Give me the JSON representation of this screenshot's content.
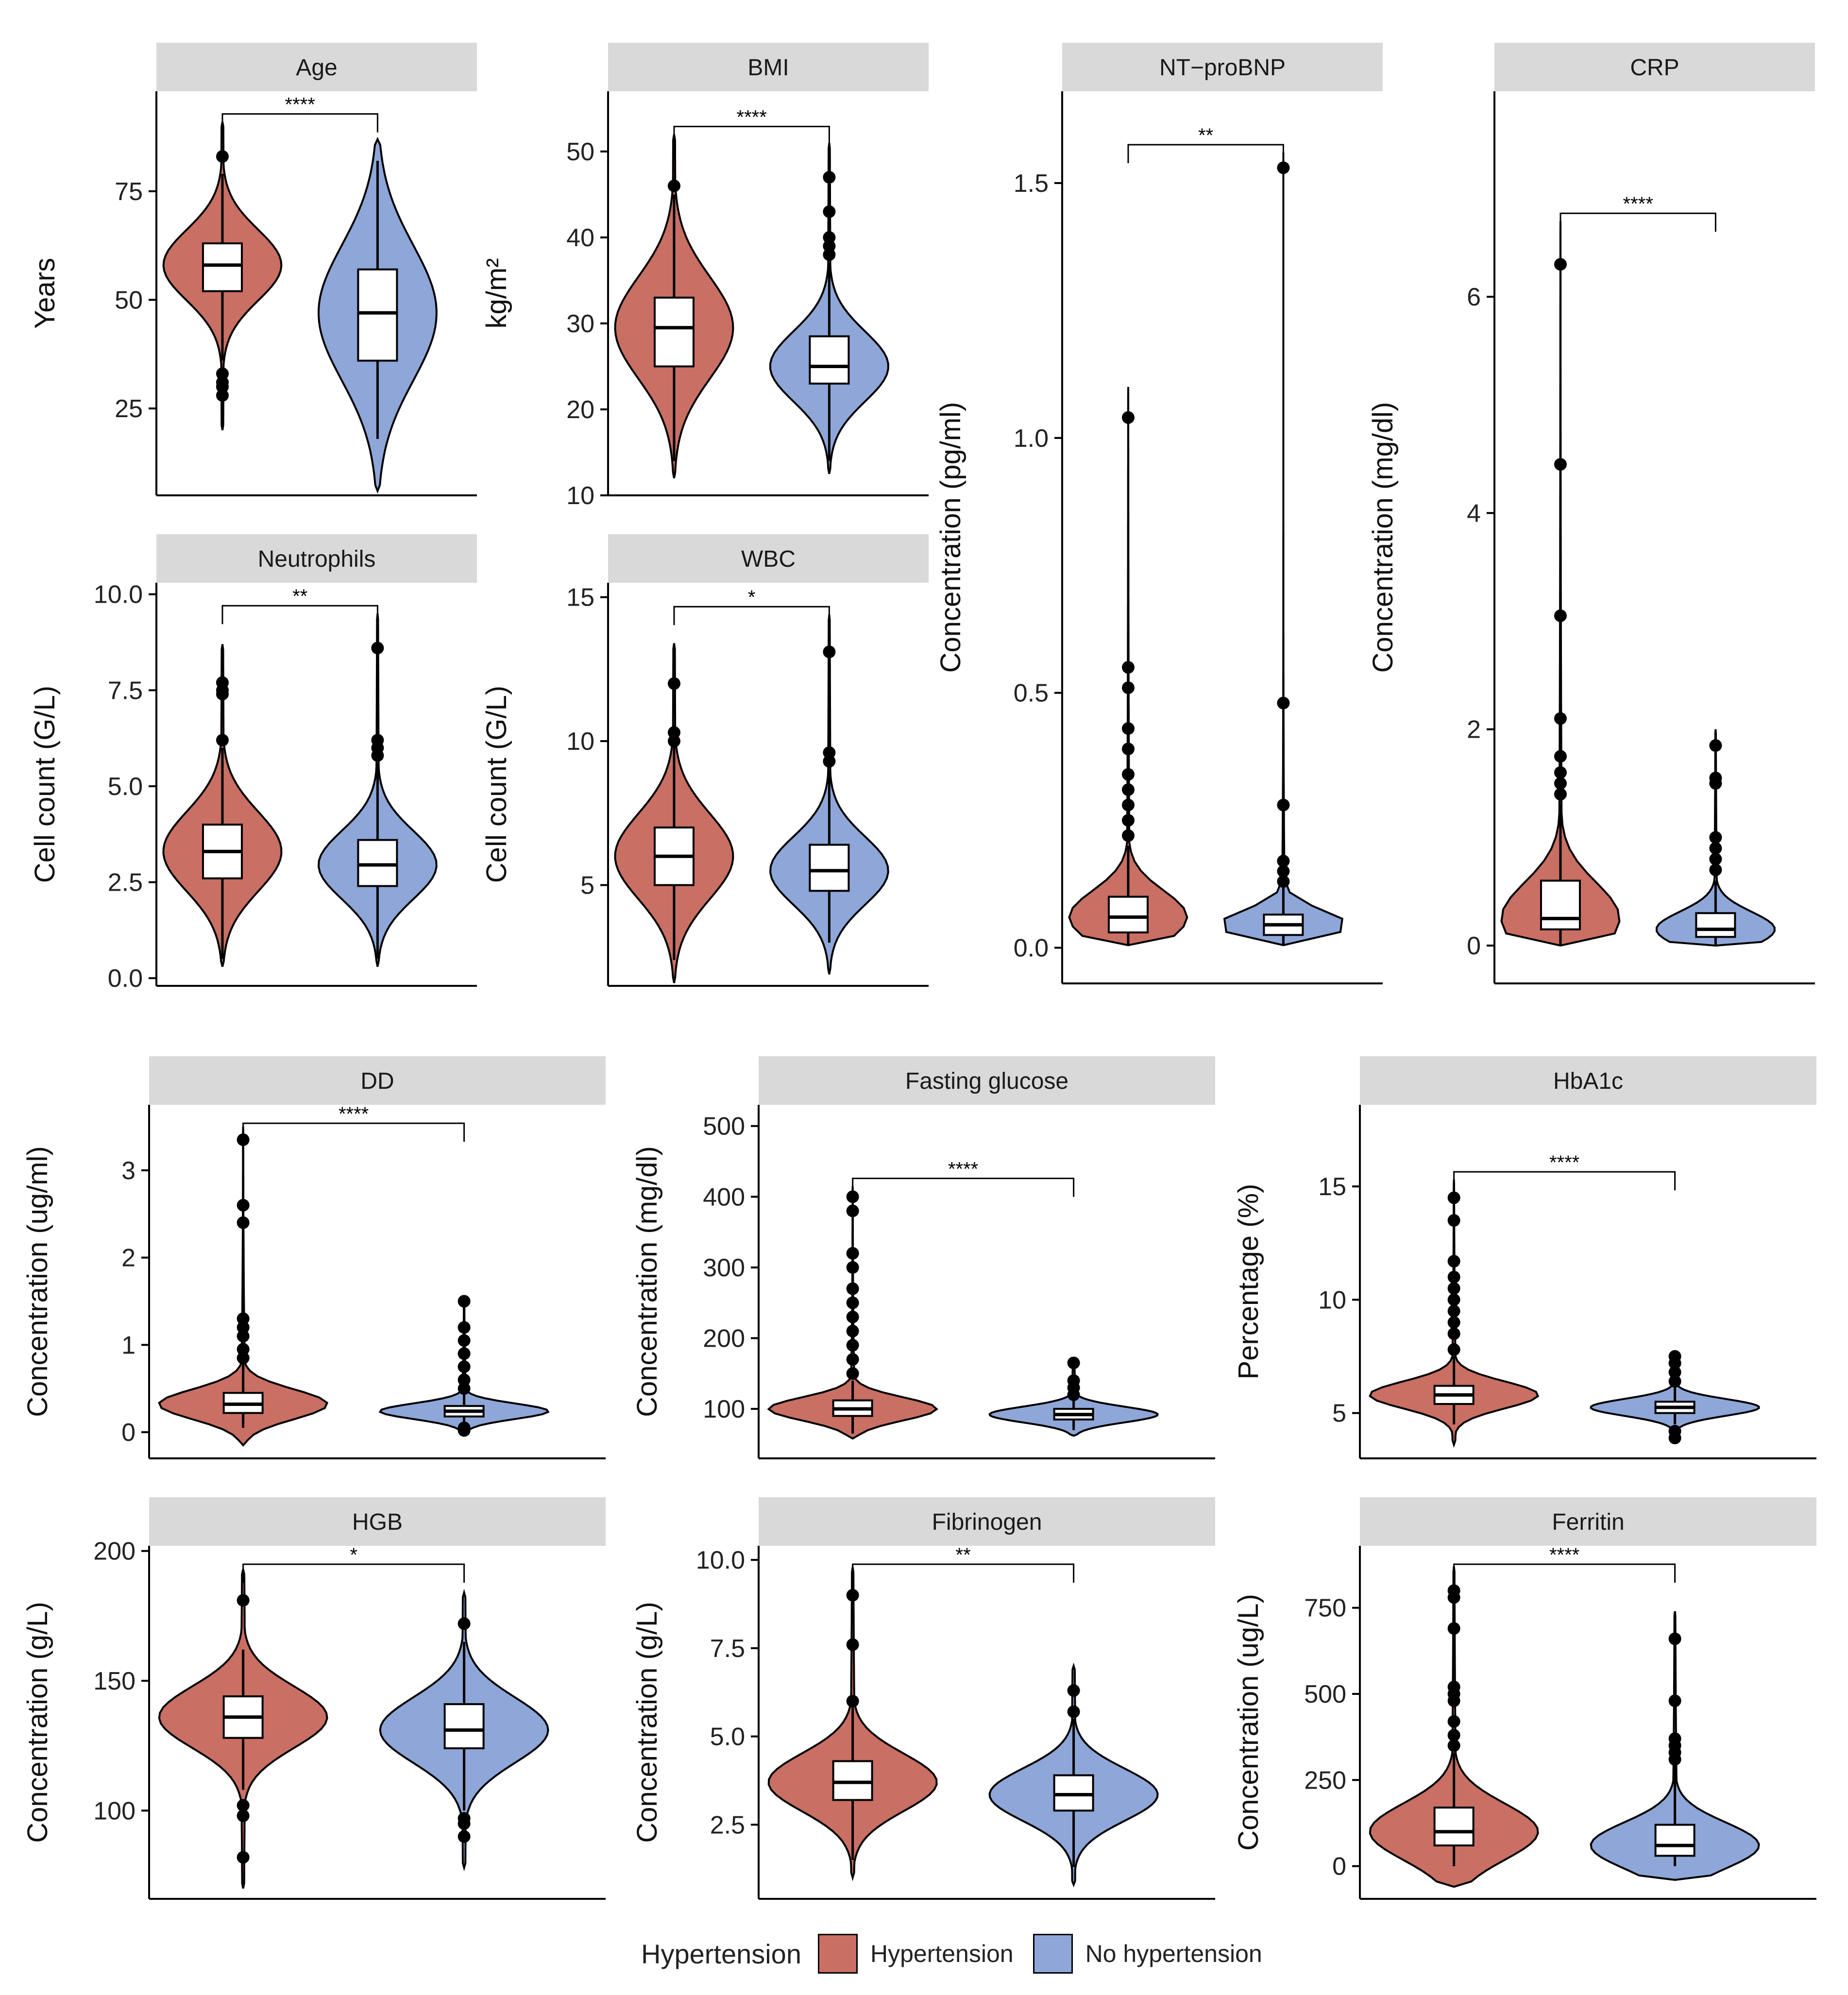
{
  "colors": {
    "hypertension": "#c96f63",
    "no_hypertension": "#8ea6d8",
    "strip": "#d9d9d9"
  },
  "legend": {
    "title": "Hypertension",
    "items": [
      "Hypertension",
      "No hypertension"
    ]
  },
  "chart_data": [
    {
      "type": "violin",
      "title": "Age",
      "ylabel": "Years",
      "ylim": [
        5,
        98
      ],
      "ticks": [
        25,
        50,
        75
      ],
      "tick_labels": [
        "25",
        "50",
        "75"
      ],
      "signif": "****",
      "categories": [
        "Hypertension",
        "No hypertension"
      ],
      "series": [
        {
          "name": "Hypertension",
          "min": 20,
          "max": 91,
          "q1": 52,
          "median": 58,
          "q3": 63,
          "whisker_low": 36,
          "whisker_high": 79,
          "outliers": [
            28,
            30,
            31,
            33,
            83
          ]
        },
        {
          "name": "No hypertension",
          "min": 6,
          "max": 87,
          "q1": 36,
          "median": 47,
          "q3": 57,
          "whisker_low": 18,
          "whisker_high": 82,
          "outliers": []
        }
      ]
    },
    {
      "type": "violin",
      "title": "BMI",
      "ylabel": "kg/m²",
      "ylim": [
        10,
        57
      ],
      "ticks": [
        10,
        20,
        30,
        40,
        50
      ],
      "tick_labels": [
        "10",
        "20",
        "30",
        "40",
        "50"
      ],
      "signif": "****",
      "categories": [
        "Hypertension",
        "No hypertension"
      ],
      "series": [
        {
          "name": "Hypertension",
          "min": 12,
          "max": 52,
          "q1": 25,
          "median": 29.5,
          "q3": 33,
          "whisker_low": 14,
          "whisker_high": 45,
          "outliers": [
            46
          ]
        },
        {
          "name": "No hypertension",
          "min": 12.5,
          "max": 51,
          "q1": 23,
          "median": 25,
          "q3": 28.5,
          "whisker_low": 14,
          "whisker_high": 37,
          "outliers": [
            38,
            39,
            40,
            43,
            47
          ]
        }
      ]
    },
    {
      "type": "violin",
      "title": "NT−proBNP",
      "ylabel": "Concentration (pg/ml)",
      "ylim": [
        -0.07,
        1.68
      ],
      "ticks": [
        0.0,
        0.5,
        1.0,
        1.5
      ],
      "tick_labels": [
        "0.0",
        "0.5",
        "1.0",
        "1.5"
      ],
      "signif": "**",
      "categories": [
        "Hypertension",
        "No hypertension"
      ],
      "series": [
        {
          "name": "Hypertension",
          "min": 0.005,
          "max": 1.1,
          "q1": 0.03,
          "median": 0.06,
          "q3": 0.1,
          "whisker_low": 0.005,
          "whisker_high": 0.2,
          "outliers": [
            0.22,
            0.25,
            0.28,
            0.31,
            0.34,
            0.39,
            0.43,
            0.51,
            0.55,
            1.04
          ]
        },
        {
          "name": "No hypertension",
          "min": 0.005,
          "max": 1.56,
          "q1": 0.025,
          "median": 0.045,
          "q3": 0.065,
          "whisker_low": 0.005,
          "whisker_high": 0.12,
          "outliers": [
            0.13,
            0.15,
            0.17,
            0.28,
            0.48,
            1.53
          ]
        }
      ]
    },
    {
      "type": "violin",
      "title": "CRP",
      "ylabel": "Concentration (mg/dl)",
      "ylim": [
        -0.35,
        7.9
      ],
      "ticks": [
        0,
        2,
        4,
        6
      ],
      "tick_labels": [
        "0",
        "2",
        "4",
        "6"
      ],
      "signif": "****",
      "categories": [
        "Hypertension",
        "No hypertension"
      ],
      "series": [
        {
          "name": "Hypertension",
          "min": 0.0,
          "max": 6.7,
          "q1": 0.15,
          "median": 0.25,
          "q3": 0.6,
          "whisker_low": 0.01,
          "whisker_high": 1.3,
          "outliers": [
            1.4,
            1.5,
            1.6,
            1.75,
            2.1,
            3.05,
            4.45,
            6.3
          ]
        },
        {
          "name": "No hypertension",
          "min": 0.0,
          "max": 2.0,
          "q1": 0.08,
          "median": 0.15,
          "q3": 0.3,
          "whisker_low": 0.01,
          "whisker_high": 0.6,
          "outliers": [
            0.7,
            0.8,
            0.9,
            1.0,
            1.5,
            1.55,
            1.85
          ]
        }
      ]
    },
    {
      "type": "violin",
      "title": "Neutrophils",
      "ylabel": "Cell count (G/L)",
      "ylim": [
        -0.2,
        10.3
      ],
      "ticks": [
        0.0,
        2.5,
        5.0,
        7.5,
        10.0
      ],
      "tick_labels": [
        "0.0",
        "2.5",
        "5.0",
        "7.5",
        "10.0"
      ],
      "signif": "**",
      "categories": [
        "Hypertension",
        "No hypertension"
      ],
      "series": [
        {
          "name": "Hypertension",
          "min": 0.3,
          "max": 8.7,
          "q1": 2.6,
          "median": 3.3,
          "q3": 4.0,
          "whisker_low": 0.5,
          "whisker_high": 6.0,
          "outliers": [
            6.2,
            7.4,
            7.5,
            7.7
          ]
        },
        {
          "name": "No hypertension",
          "min": 0.3,
          "max": 9.5,
          "q1": 2.4,
          "median": 2.95,
          "q3": 3.6,
          "whisker_low": 0.5,
          "whisker_high": 5.6,
          "outliers": [
            5.8,
            6.0,
            6.2,
            8.6
          ]
        }
      ]
    },
    {
      "type": "violin",
      "title": "WBC",
      "ylabel": "Cell count (G/L)",
      "ylim": [
        1.5,
        15.5
      ],
      "ticks": [
        5,
        10,
        15
      ],
      "tick_labels": [
        "5",
        "10",
        "15"
      ],
      "signif": "*",
      "categories": [
        "Hypertension",
        "No hypertension"
      ],
      "series": [
        {
          "name": "Hypertension",
          "min": 1.6,
          "max": 13.4,
          "q1": 5.0,
          "median": 6.0,
          "q3": 7.0,
          "whisker_low": 2.4,
          "whisker_high": 9.8,
          "outliers": [
            10.0,
            10.3,
            12.0
          ]
        },
        {
          "name": "No hypertension",
          "min": 1.9,
          "max": 14.4,
          "q1": 4.8,
          "median": 5.5,
          "q3": 6.4,
          "whisker_low": 3.0,
          "whisker_high": 9.0,
          "outliers": [
            9.3,
            9.6,
            13.1
          ]
        }
      ]
    },
    {
      "type": "violin",
      "title": "DD",
      "ylabel": "Concentration (ug/ml)",
      "ylim": [
        -0.3,
        3.75
      ],
      "ticks": [
        0,
        1,
        2,
        3
      ],
      "tick_labels": [
        "0",
        "1",
        "2",
        "3"
      ],
      "signif": "****",
      "categories": [
        "Hypertension",
        "No hypertension"
      ],
      "series": [
        {
          "name": "Hypertension",
          "min": -0.15,
          "max": 3.5,
          "q1": 0.22,
          "median": 0.32,
          "q3": 0.45,
          "whisker_low": 0.05,
          "whisker_high": 0.8,
          "outliers": [
            0.85,
            0.95,
            1.1,
            1.2,
            1.3,
            2.4,
            2.6,
            3.35
          ]
        },
        {
          "name": "No hypertension",
          "min": 0.0,
          "max": 1.55,
          "q1": 0.18,
          "median": 0.24,
          "q3": 0.3,
          "whisker_low": 0.05,
          "whisker_high": 0.45,
          "outliers": [
            0.02,
            0.05,
            0.5,
            0.6,
            0.75,
            0.9,
            1.05,
            1.2,
            1.5
          ]
        }
      ]
    },
    {
      "type": "violin",
      "title": "Fasting glucose",
      "ylabel": "Concentration (mg/dl)",
      "ylim": [
        30,
        530
      ],
      "ticks": [
        100,
        200,
        300,
        400,
        500
      ],
      "tick_labels": [
        "100",
        "200",
        "300",
        "400",
        "500"
      ],
      "signif": "****",
      "categories": [
        "Hypertension",
        "No hypertension"
      ],
      "series": [
        {
          "name": "Hypertension",
          "min": 58,
          "max": 415,
          "q1": 90,
          "median": 100,
          "q3": 112,
          "whisker_low": 65,
          "whisker_high": 140,
          "outliers": [
            150,
            170,
            190,
            210,
            230,
            250,
            270,
            300,
            320,
            380,
            400
          ]
        },
        {
          "name": "No hypertension",
          "min": 62,
          "max": 170,
          "q1": 85,
          "median": 92,
          "q3": 100,
          "whisker_low": 70,
          "whisker_high": 115,
          "outliers": [
            120,
            130,
            140,
            165
          ]
        }
      ]
    },
    {
      "type": "violin",
      "title": "HbA1c",
      "ylabel": "Percentage (%)",
      "ylim": [
        3,
        18.6
      ],
      "ticks": [
        5,
        10,
        15
      ],
      "tick_labels": [
        "5",
        "10",
        "15"
      ],
      "signif": "****",
      "categories": [
        "Hypertension",
        "No hypertension"
      ],
      "series": [
        {
          "name": "Hypertension",
          "min": 3.6,
          "max": 15.3,
          "q1": 5.4,
          "median": 5.8,
          "q3": 6.2,
          "whisker_low": 4.5,
          "whisker_high": 7.5,
          "outliers": [
            7.8,
            8.5,
            9.0,
            9.5,
            10.0,
            10.5,
            11.0,
            11.7,
            13.5,
            14.5
          ]
        },
        {
          "name": "No hypertension",
          "min": 3.7,
          "max": 7.5,
          "q1": 5.0,
          "median": 5.25,
          "q3": 5.5,
          "whisker_low": 4.5,
          "whisker_high": 6.2,
          "outliers": [
            3.9,
            4.2,
            6.4,
            6.8,
            7.2,
            7.5
          ]
        }
      ]
    },
    {
      "type": "violin",
      "title": "HGB",
      "ylabel": "Concentration (g/L)",
      "ylim": [
        66,
        202
      ],
      "ticks": [
        100,
        150,
        200
      ],
      "tick_labels": [
        "100",
        "150",
        "200"
      ],
      "signif": "*",
      "categories": [
        "Hypertension",
        "No hypertension"
      ],
      "series": [
        {
          "name": "Hypertension",
          "min": 70,
          "max": 193,
          "q1": 128,
          "median": 136,
          "q3": 144,
          "whisker_low": 108,
          "whisker_high": 162,
          "outliers": [
            82,
            98,
            102,
            181
          ]
        },
        {
          "name": "No hypertension",
          "min": 78,
          "max": 184,
          "q1": 124,
          "median": 131,
          "q3": 141,
          "whisker_low": 100,
          "whisker_high": 165,
          "outliers": [
            90,
            95,
            97,
            172
          ]
        }
      ]
    },
    {
      "type": "violin",
      "title": "Fibrinogen",
      "ylabel": "Concentration (g/L)",
      "ylim": [
        0.4,
        10.4
      ],
      "ticks": [
        2.5,
        5.0,
        7.5,
        10.0
      ],
      "tick_labels": [
        "2.5",
        "5.0",
        "7.5",
        "10.0"
      ],
      "signif": "**",
      "categories": [
        "Hypertension",
        "No hypertension"
      ],
      "series": [
        {
          "name": "Hypertension",
          "min": 1.0,
          "max": 9.8,
          "q1": 3.2,
          "median": 3.7,
          "q3": 4.3,
          "whisker_low": 1.5,
          "whisker_high": 5.9,
          "outliers": [
            6.0,
            7.6,
            9.0
          ]
        },
        {
          "name": "No hypertension",
          "min": 0.8,
          "max": 7.0,
          "q1": 2.9,
          "median": 3.35,
          "q3": 3.9,
          "whisker_low": 1.3,
          "whisker_high": 5.5,
          "outliers": [
            5.7,
            6.3
          ]
        }
      ]
    },
    {
      "type": "violin",
      "title": "Ferritin",
      "ylabel": "Concentration (ug/L)",
      "ylim": [
        -95,
        930
      ],
      "ticks": [
        0,
        250,
        500,
        750
      ],
      "tick_labels": [
        "0",
        "250",
        "500",
        "750"
      ],
      "signif": "****",
      "categories": [
        "Hypertension",
        "No hypertension"
      ],
      "series": [
        {
          "name": "Hypertension",
          "min": -60,
          "max": 870,
          "q1": 60,
          "median": 100,
          "q3": 170,
          "whisker_low": 0,
          "whisker_high": 330,
          "outliers": [
            350,
            380,
            420,
            480,
            500,
            520,
            690,
            780,
            800
          ]
        },
        {
          "name": "No hypertension",
          "min": -40,
          "max": 740,
          "q1": 30,
          "median": 60,
          "q3": 120,
          "whisker_low": 0,
          "whisker_high": 300,
          "outliers": [
            310,
            330,
            350,
            370,
            480,
            660
          ]
        }
      ]
    }
  ]
}
